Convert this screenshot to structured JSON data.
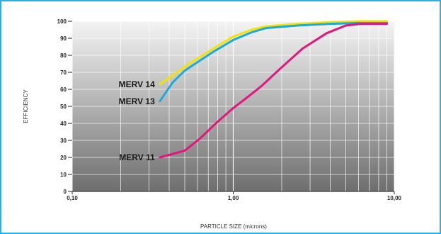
{
  "chart_data": {
    "type": "line",
    "title": "",
    "xlabel": "PARTICLE SIZE (microns)",
    "ylabel": "EFFICIENCY",
    "x_scale": "log",
    "xlim": [
      0.1,
      10
    ],
    "ylim": [
      0,
      100
    ],
    "x_ticks": [
      0.1,
      1,
      10
    ],
    "x_tick_labels": [
      "0,10",
      "1,00",
      "10,00"
    ],
    "y_ticks": [
      0,
      10,
      20,
      30,
      40,
      50,
      60,
      70,
      80,
      90,
      100
    ],
    "y_tick_labels": [
      "0",
      "10",
      "20",
      "30",
      "40",
      "50",
      "60",
      "70",
      "80",
      "90",
      "100"
    ],
    "grid": true,
    "background": "vertical gradient, light grey at top to dark grey at bottom",
    "series": [
      {
        "name": "MERV 14",
        "color": "#f2e400",
        "points": [
          [
            0.35,
            63
          ],
          [
            0.45,
            70
          ],
          [
            0.55,
            76
          ],
          [
            0.7,
            82
          ],
          [
            0.85,
            87
          ],
          [
            1.0,
            91
          ],
          [
            1.3,
            95
          ],
          [
            1.6,
            97
          ],
          [
            2.5,
            98.5
          ],
          [
            4.0,
            99.5
          ],
          [
            6.0,
            100
          ],
          [
            9.0,
            100
          ]
        ]
      },
      {
        "name": "MERV 13",
        "color": "#1ba9e1",
        "points": [
          [
            0.35,
            53
          ],
          [
            0.42,
            64
          ],
          [
            0.5,
            71
          ],
          [
            0.6,
            76
          ],
          [
            0.75,
            82
          ],
          [
            1.0,
            89
          ],
          [
            1.3,
            93.5
          ],
          [
            1.6,
            96
          ],
          [
            2.5,
            97.5
          ],
          [
            4.0,
            98.5
          ],
          [
            6.0,
            99
          ],
          [
            9.0,
            99
          ]
        ]
      },
      {
        "name": "MERV 11",
        "color": "#e5157e",
        "points": [
          [
            0.35,
            20
          ],
          [
            0.5,
            24
          ],
          [
            0.62,
            31
          ],
          [
            0.8,
            41
          ],
          [
            1.0,
            49
          ],
          [
            1.25,
            56
          ],
          [
            1.5,
            62
          ],
          [
            2.0,
            73
          ],
          [
            2.7,
            84
          ],
          [
            3.8,
            93
          ],
          [
            5.0,
            97.5
          ],
          [
            6.2,
            98.5
          ],
          [
            9.0,
            98.5
          ]
        ]
      }
    ]
  }
}
